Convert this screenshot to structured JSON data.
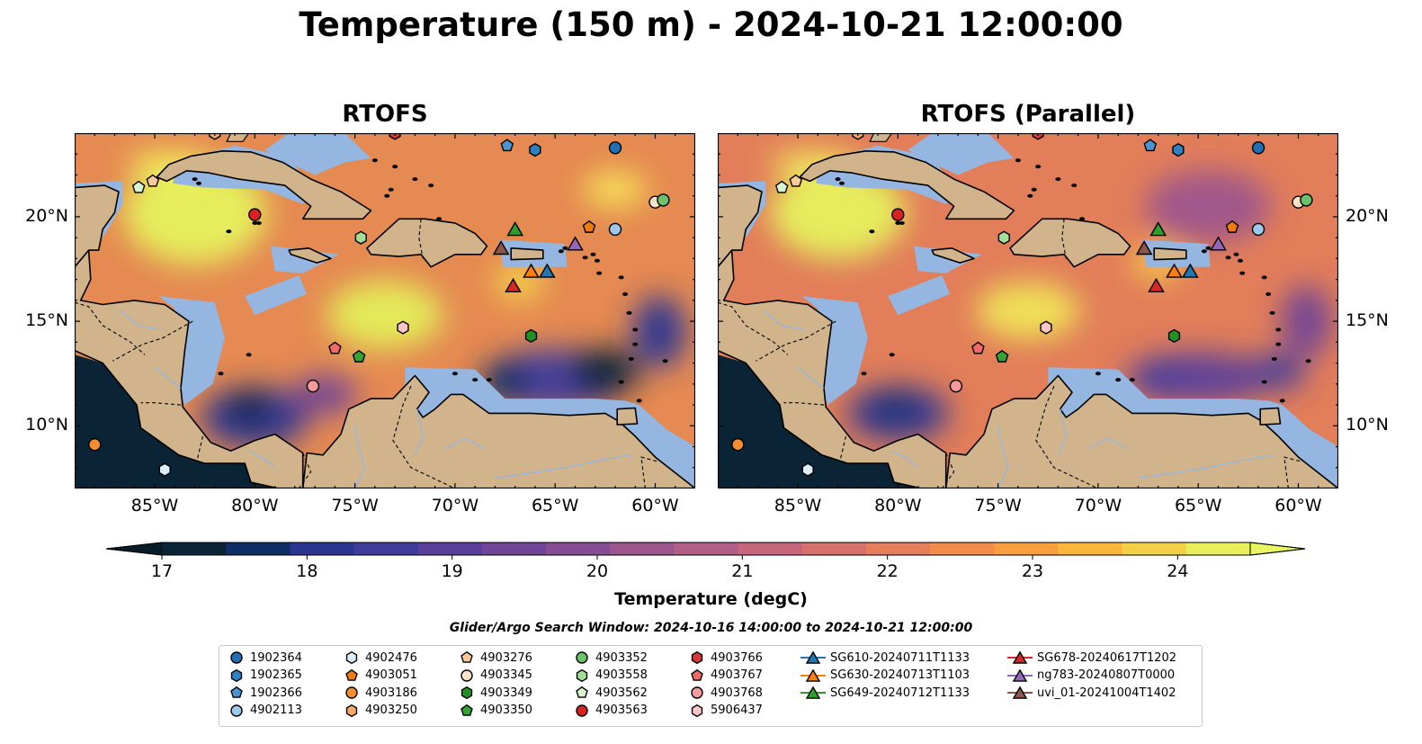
{
  "title": "Temperature (150 m) - 2024-10-21 12:00:00",
  "panels": [
    {
      "title": "RTOFS"
    },
    {
      "title": "RTOFS (Parallel)"
    }
  ],
  "map_extent": {
    "lon": [
      -89,
      -58
    ],
    "lat": [
      7,
      24
    ]
  },
  "lon_ticks": [
    {
      "value": -85,
      "label": "85°W"
    },
    {
      "value": -80,
      "label": "80°W"
    },
    {
      "value": -75,
      "label": "75°W"
    },
    {
      "value": -70,
      "label": "70°W"
    },
    {
      "value": -65,
      "label": "65°W"
    },
    {
      "value": -60,
      "label": "60°W"
    }
  ],
  "lat_ticks": [
    {
      "value": 20,
      "label": "20°N"
    },
    {
      "value": 15,
      "label": "15°N"
    },
    {
      "value": 10,
      "label": "10°N"
    }
  ],
  "colorbar": {
    "label": "Temperature (degC)",
    "min": 17,
    "max": 24.5,
    "step": 0.5,
    "ticks": [
      17,
      18,
      19,
      20,
      21,
      22,
      23,
      24
    ],
    "colors": [
      "#0a2436",
      "#0f2e66",
      "#2a3592",
      "#3f3c9e",
      "#5a3e9c",
      "#6f4597",
      "#864e92",
      "#9c558d",
      "#b25e86",
      "#c7657c",
      "#d8706d",
      "#e67e5c",
      "#f38c4a",
      "#f99e3e",
      "#fbb53b",
      "#f6cf48",
      "#e8ef5a"
    ],
    "under_color": "#081b28",
    "over_color": "#e8f55e"
  },
  "search_window": "Glider/Argo Search Window: 2024-10-16 14:00:00 to 2024-10-21 12:00:00",
  "legend": {
    "columns": [
      [
        {
          "label": "1902364",
          "marker": "circle",
          "color": "#1f6fb2"
        },
        {
          "label": "1902365",
          "marker": "hexagon",
          "color": "#2f80c0"
        },
        {
          "label": "1902366",
          "marker": "pentagon",
          "color": "#4a93d0"
        },
        {
          "label": "4902113",
          "marker": "circle",
          "color": "#9cc8ea"
        }
      ],
      [
        {
          "label": "4902476",
          "marker": "hexagon",
          "color": "#dbeef9"
        },
        {
          "label": "4903051",
          "marker": "pentagon",
          "color": "#f07c0e"
        },
        {
          "label": "4903186",
          "marker": "circle",
          "color": "#f48e2e"
        },
        {
          "label": "4903250",
          "marker": "hexagon",
          "color": "#f9a866"
        }
      ],
      [
        {
          "label": "4903276",
          "marker": "pentagon",
          "color": "#fdc99a"
        },
        {
          "label": "4903345",
          "marker": "circle",
          "color": "#fde3c7"
        },
        {
          "label": "4903349",
          "marker": "hexagon",
          "color": "#249024"
        },
        {
          "label": "4903350",
          "marker": "pentagon",
          "color": "#36a336"
        }
      ],
      [
        {
          "label": "4903352",
          "marker": "circle",
          "color": "#6cc26c"
        },
        {
          "label": "4903558",
          "marker": "hexagon",
          "color": "#a4dd96"
        },
        {
          "label": "4903562",
          "marker": "pentagon",
          "color": "#d9f3cf"
        },
        {
          "label": "4903563",
          "marker": "circle",
          "color": "#d62222"
        }
      ],
      [
        {
          "label": "4903766",
          "marker": "hexagon",
          "color": "#d63a3a"
        },
        {
          "label": "4903767",
          "marker": "pentagon",
          "color": "#f06a6a"
        },
        {
          "label": "4903768",
          "marker": "circle",
          "color": "#f59a9a"
        },
        {
          "label": "5906437",
          "marker": "hexagon",
          "color": "#fcc6c6"
        }
      ],
      [
        {
          "label": "SG610-20240711T1133",
          "marker": "triangle",
          "color": "#1f77b4"
        },
        {
          "label": "SG630-20240713T1103",
          "marker": "triangle",
          "color": "#ff7f0e"
        },
        {
          "label": "SG649-20240712T1133",
          "marker": "triangle",
          "color": "#2ca02c"
        }
      ],
      [
        {
          "label": "SG678-20240617T1202",
          "marker": "triangle",
          "color": "#d62728"
        },
        {
          "label": "ng783-20240807T0000",
          "marker": "triangle",
          "color": "#9467bd"
        },
        {
          "label": "uvi_01-20241004T1402",
          "marker": "triangle",
          "color": "#8c564b"
        }
      ]
    ]
  },
  "stations": [
    {
      "label": "1902364",
      "lon": -62,
      "lat": 23.3
    },
    {
      "label": "1902365",
      "lon": -66,
      "lat": 23.2
    },
    {
      "label": "1902366",
      "lon": -67.4,
      "lat": 23.4
    },
    {
      "label": "4902113",
      "lon": -62,
      "lat": 19.4
    },
    {
      "label": "4902476",
      "lon": -84.5,
      "lat": 7.9
    },
    {
      "label": "4903051",
      "lon": -63.3,
      "lat": 19.5
    },
    {
      "label": "4903186",
      "lon": -88,
      "lat": 9.1
    },
    {
      "label": "4903250",
      "lon": -82,
      "lat": 24
    },
    {
      "label": "4903276",
      "lon": -85.1,
      "lat": 21.7
    },
    {
      "label": "4903345",
      "lon": -60,
      "lat": 20.7
    },
    {
      "label": "4903349",
      "lon": -66.2,
      "lat": 14.3
    },
    {
      "label": "4903350",
      "lon": -74.8,
      "lat": 13.3
    },
    {
      "label": "4903352",
      "lon": -59.6,
      "lat": 20.8
    },
    {
      "label": "4903558",
      "lon": -74.7,
      "lat": 19
    },
    {
      "label": "4903562",
      "lon": -85.8,
      "lat": 21.4
    },
    {
      "label": "4903563",
      "lon": -80,
      "lat": 20.1
    },
    {
      "label": "4903766",
      "lon": -73,
      "lat": 24
    },
    {
      "label": "4903767",
      "lon": -76,
      "lat": 13.7
    },
    {
      "label": "4903768",
      "lon": -77.1,
      "lat": 11.9
    },
    {
      "label": "5906437",
      "lon": -72.6,
      "lat": 14.7
    },
    {
      "label": "SG610-20240711T1133",
      "lon": -65.4,
      "lat": 17.4
    },
    {
      "label": "SG630-20240713T1103",
      "lon": -66.2,
      "lat": 17.4
    },
    {
      "label": "SG649-20240712T1133",
      "lon": -67,
      "lat": 19.4
    },
    {
      "label": "SG678-20240617T1202",
      "lon": -67.1,
      "lat": 16.7
    },
    {
      "label": "ng783-20240807T0000",
      "lon": -64,
      "lat": 18.7
    },
    {
      "label": "uvi_01-20241004T1402",
      "lon": -67.7,
      "lat": 18.5
    }
  ]
}
